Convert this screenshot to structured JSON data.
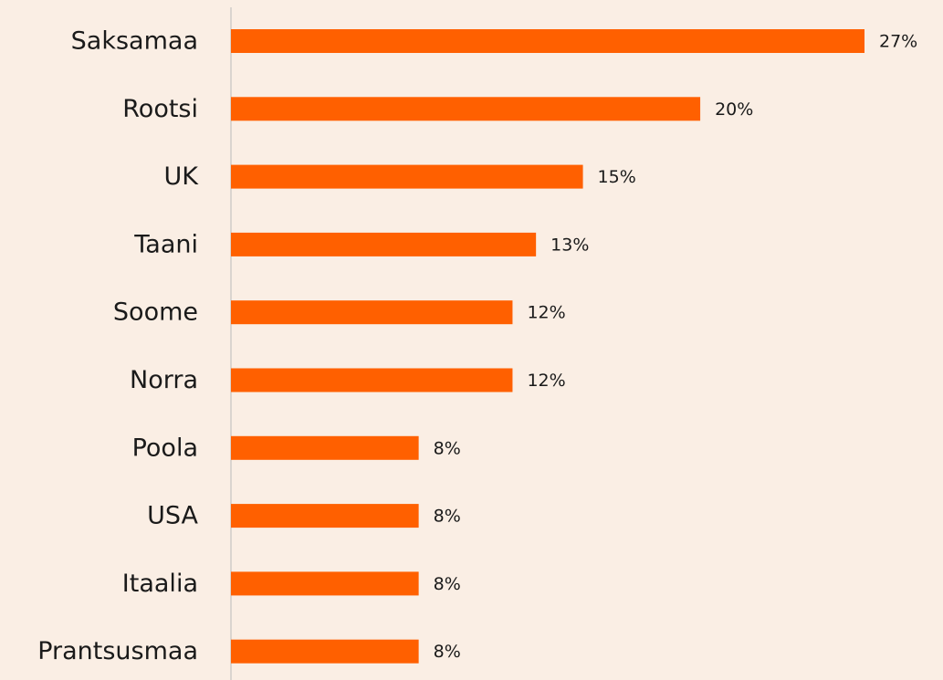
{
  "chart_data": {
    "type": "barh",
    "categories": [
      "Saksamaa",
      "Rootsi",
      "UK",
      "Taani",
      "Soome",
      "Norra",
      "Poola",
      "USA",
      "Itaalia",
      "Prantsusmaa"
    ],
    "values": [
      27,
      20,
      15,
      13,
      12,
      12,
      8,
      8,
      8,
      8
    ],
    "value_labels": [
      "27%",
      "20%",
      "15%",
      "13%",
      "12%",
      "12%",
      "8%",
      "8%",
      "8%",
      "8%"
    ],
    "color": "#ff6000"
  }
}
